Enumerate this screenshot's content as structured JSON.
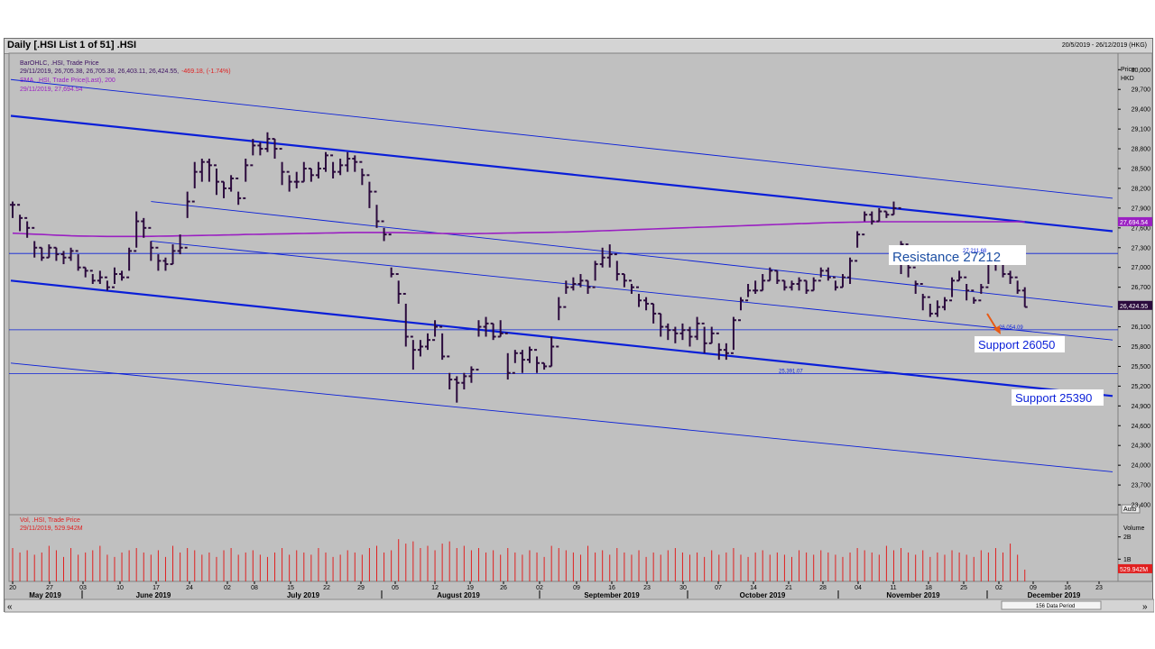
{
  "window": {
    "title": "Daily [.HSI List 1 of 51] .HSI",
    "date_range": "20/5/2019 - 26/12/2019 (HKG)",
    "data_period": "156 Data Period"
  },
  "legend": {
    "ohlc_label": "BarOHLC, .HSI, Trade Price",
    "ohlc_values": "29/11/2019, 26,705.38, 26,705.38, 26,403.11, 26,424.55,",
    "ohlc_change": "-469.18, (-1.74%)",
    "sma_label": "SMA, .HSI, Trade Price(Last),  200",
    "sma_value": "29/11/2019, 27,694.54",
    "vol_label": "Vol, .HSI, Trade Price",
    "vol_value": "29/11/2019, 529.942M"
  },
  "axis": {
    "price_title": "Price",
    "price_unit": "HKD",
    "auto": "Auto",
    "price_ticks": [
      "30,000",
      "29,700",
      "29,400",
      "29,100",
      "28,800",
      "28,500",
      "28,200",
      "27,900",
      "27,600",
      "27,300",
      "27,000",
      "26,700",
      "26,400",
      "26,100",
      "25,800",
      "25,500",
      "25,200",
      "24,900",
      "24,600",
      "24,300",
      "24,000",
      "23,700",
      "23,400"
    ],
    "vol_ticks": [
      "2B",
      "1B"
    ],
    "vol_title": "Volume",
    "day_ticks": [
      "20",
      "27",
      "03",
      "10",
      "17",
      "24",
      "02",
      "08",
      "15",
      "22",
      "29",
      "05",
      "12",
      "19",
      "26",
      "02",
      "09",
      "16",
      "23",
      "30",
      "07",
      "14",
      "21",
      "28",
      "04",
      "11",
      "18",
      "25",
      "02",
      "09",
      "16",
      "23"
    ],
    "months": [
      "May 2019",
      "June 2019",
      "July 2019",
      "August 2019",
      "September 2019",
      "October 2019",
      "November 2019",
      "December 2019"
    ]
  },
  "annotations": {
    "resistance": "Resistance 27212",
    "support1": "Support 26050",
    "support2": "Support 25390",
    "price_flag_last": "26,424.55",
    "price_flag_sma": "27,694.54",
    "vol_flag": "529.942M",
    "level_26054": "26,054.09",
    "level_25391": "25,391.07",
    "level_27212": "27,211.68"
  },
  "colors": {
    "bars": "#2b0a3d",
    "sma": "#9a1fc2",
    "trend": "#0a1fd8",
    "volume": "#e02020",
    "arrow": "#e85a14"
  },
  "chart_data": {
    "type": "bar",
    "title": "Daily [.HSI List 1 of 51] .HSI",
    "xlabel": "",
    "ylabel": "Price HKD",
    "ylim": [
      23250,
      30250
    ],
    "x_range": [
      "2019-05-20",
      "2019-12-26"
    ],
    "grid": false,
    "legend": "top-left",
    "series": [
      {
        "name": "BarOHLC, .HSI, Trade Price",
        "type": "ohlc",
        "close": [
          27950,
          27750,
          27600,
          27300,
          27150,
          27300,
          27200,
          27150,
          27250,
          27000,
          26950,
          26800,
          26850,
          26700,
          26900,
          26850,
          27250,
          27700,
          27600,
          27300,
          27100,
          27050,
          27250,
          27300,
          28000,
          28450,
          28600,
          28550,
          28300,
          28200,
          28350,
          28050,
          28550,
          28850,
          28800,
          28950,
          28800,
          28450,
          28300,
          28300,
          28500,
          28400,
          28500,
          28700,
          28450,
          28550,
          28650,
          28600,
          28400,
          28150,
          27700,
          27500,
          26900,
          26600,
          25950,
          25750,
          25800,
          25900,
          26100,
          25650,
          25300,
          25250,
          25350,
          25450,
          26100,
          26150,
          25950,
          26000,
          25400,
          25700,
          25600,
          25750,
          25550,
          25500,
          25800,
          26400,
          26700,
          26750,
          26800,
          26700,
          27050,
          27150,
          27200,
          26900,
          26800,
          26700,
          26500,
          26450,
          26300,
          26100,
          26050,
          26000,
          26050,
          25950,
          26150,
          25850,
          26000,
          25750,
          25700,
          26200,
          26500,
          26650,
          26650,
          26800,
          26950,
          26800,
          26700,
          26750,
          26800,
          26650,
          26800,
          26950,
          26850,
          26700,
          26850,
          27100,
          27500,
          27800,
          27700,
          27850,
          27800,
          27900,
          27350,
          27000,
          26750,
          26550,
          26300,
          26400,
          26500,
          26800,
          26850,
          26650,
          26500,
          26700,
          27050,
          27100,
          26900,
          26850,
          26650,
          26400
        ],
        "high": [
          28000,
          27800,
          27700,
          27400,
          27300,
          27350,
          27300,
          27250,
          27300,
          27200,
          27000,
          26900,
          26950,
          26800,
          27000,
          26950,
          27300,
          27850,
          27750,
          27400,
          27200,
          27150,
          27350,
          27500,
          28150,
          28600,
          28650,
          28650,
          28500,
          28300,
          28400,
          28150,
          28650,
          28950,
          28900,
          29050,
          28950,
          28600,
          28400,
          28450,
          28600,
          28500,
          28600,
          28750,
          28600,
          28650,
          28750,
          28700,
          28500,
          28300,
          27950,
          27600,
          27000,
          26800,
          26450,
          25900,
          25900,
          26000,
          26200,
          26000,
          25400,
          25350,
          25400,
          25500,
          26200,
          26250,
          26150,
          26200,
          25700,
          25750,
          25750,
          25800,
          25650,
          25550,
          25950,
          26550,
          26800,
          26850,
          26900,
          26800,
          27100,
          27300,
          27350,
          27100,
          26900,
          26750,
          26600,
          26550,
          26450,
          26300,
          26150,
          26100,
          26150,
          26100,
          26250,
          26100,
          26100,
          25850,
          25850,
          26250,
          26550,
          26750,
          26800,
          26900,
          27000,
          26950,
          26800,
          26800,
          26850,
          26800,
          26850,
          27000,
          27000,
          26800,
          26900,
          27150,
          27550,
          27850,
          27850,
          27900,
          27850,
          28000,
          27400,
          27200,
          26800,
          26600,
          26450,
          26500,
          26550,
          26850,
          26950,
          26750,
          26550,
          26750,
          27100,
          27250,
          27050,
          26950,
          26800,
          26700
        ],
        "low": [
          27750,
          27550,
          27450,
          27150,
          27100,
          27150,
          27100,
          27050,
          27100,
          26950,
          26850,
          26750,
          26750,
          26650,
          26750,
          26800,
          26950,
          27300,
          27450,
          27100,
          26950,
          26950,
          27050,
          27200,
          27750,
          28200,
          28300,
          28300,
          28100,
          28050,
          28150,
          27950,
          28300,
          28700,
          28700,
          28750,
          28650,
          28250,
          28150,
          28200,
          28300,
          28300,
          28350,
          28450,
          28350,
          28400,
          28450,
          28450,
          28250,
          27900,
          27600,
          27400,
          26850,
          26450,
          25800,
          25450,
          25650,
          25750,
          25950,
          25600,
          25150,
          24950,
          25150,
          25250,
          25950,
          25950,
          25900,
          25950,
          25300,
          25550,
          25400,
          25550,
          25400,
          25450,
          25500,
          26200,
          26600,
          26650,
          26700,
          26600,
          26800,
          27000,
          27000,
          26800,
          26700,
          26600,
          26400,
          26350,
          26150,
          25950,
          25900,
          25850,
          25900,
          25800,
          25900,
          25700,
          25850,
          25600,
          25600,
          25750,
          26350,
          26550,
          26600,
          26650,
          26800,
          26750,
          26650,
          26650,
          26650,
          26600,
          26650,
          26850,
          26800,
          26650,
          26700,
          26750,
          27300,
          27700,
          27650,
          27700,
          27750,
          27800,
          26900,
          26850,
          26600,
          26350,
          26250,
          26250,
          26350,
          26550,
          26800,
          26500,
          26450,
          26600,
          26750,
          26950,
          26850,
          26750,
          26600,
          26400
        ]
      },
      {
        "name": "SMA, .HSI, Trade Price(Last),  200",
        "type": "line",
        "values": [
          27520,
          27515,
          27510,
          27505,
          27500,
          27495,
          27490,
          27485,
          27480,
          27478,
          27476,
          27474,
          27472,
          27470,
          27470,
          27470,
          27470,
          27470,
          27470,
          27472,
          27474,
          27476,
          27478,
          27480,
          27482,
          27484,
          27486,
          27488,
          27490,
          27492,
          27494,
          27496,
          27500,
          27502,
          27504,
          27506,
          27508,
          27510,
          27512,
          27514,
          27516,
          27518,
          27520,
          27522,
          27524,
          27526,
          27528,
          27530,
          27530,
          27530,
          27530,
          27530,
          27530,
          27528,
          27526,
          27524,
          27522,
          27520,
          27518,
          27516,
          27514,
          27512,
          27512,
          27512,
          27514,
          27516,
          27518,
          27520,
          27522,
          27524,
          27526,
          27528,
          27530,
          27532,
          27534,
          27536,
          27538,
          27540,
          27544,
          27548,
          27552,
          27556,
          27560,
          27564,
          27568,
          27572,
          27576,
          27580,
          27584,
          27588,
          27592,
          27596,
          27600,
          27604,
          27608,
          27612,
          27616,
          27620,
          27624,
          27628,
          27632,
          27636,
          27640,
          27644,
          27648,
          27652,
          27656,
          27660,
          27664,
          27668,
          27672,
          27676,
          27680,
          27682,
          27684,
          27686,
          27688,
          27690,
          27692,
          27694,
          27694,
          27694,
          27694,
          27694,
          27694,
          27694,
          27694,
          27694,
          27694,
          27694,
          27694,
          27694,
          27694,
          27694,
          27694,
          27694,
          27694,
          27694,
          27694,
          27694
        ]
      },
      {
        "name": "Vol, .HSI, Trade Price",
        "type": "bar",
        "values": [
          1.5,
          1.3,
          1.4,
          1.2,
          1.3,
          1.6,
          1.4,
          1.1,
          1.5,
          1.2,
          1.3,
          1.4,
          1.6,
          1.2,
          1.1,
          1.3,
          1.4,
          1.5,
          1.3,
          1.2,
          1.4,
          1.1,
          1.6,
          1.3,
          1.5,
          1.4,
          1.2,
          1.3,
          1.1,
          1.4,
          1.5,
          1.2,
          1.3,
          1.4,
          1.2,
          1.1,
          1.3,
          1.5,
          1.2,
          1.4,
          1.3,
          1.2,
          1.5,
          1.3,
          1.1,
          1.2,
          1.4,
          1.3,
          1.2,
          1.5,
          1.6,
          1.3,
          1.4,
          1.9,
          1.7,
          1.8,
          1.5,
          1.6,
          1.4,
          1.7,
          1.8,
          1.5,
          1.6,
          1.4,
          1.5,
          1.3,
          1.4,
          1.2,
          1.5,
          1.3,
          1.2,
          1.4,
          1.3,
          1.1,
          1.6,
          1.5,
          1.4,
          1.3,
          1.2,
          1.6,
          1.3,
          1.4,
          1.2,
          1.5,
          1.3,
          1.2,
          1.4,
          1.1,
          1.3,
          1.2,
          1.4,
          1.5,
          1.3,
          1.2,
          1.3,
          1.1,
          1.4,
          1.2,
          1.3,
          1.5,
          1.2,
          1.1,
          1.3,
          1.4,
          1.2,
          1.3,
          1.2,
          1.1,
          1.4,
          1.3,
          1.2,
          1.4,
          1.3,
          1.2,
          1.1,
          1.3,
          1.5,
          1.4,
          1.3,
          1.2,
          1.6,
          1.4,
          1.5,
          1.3,
          1.2,
          1.4,
          1.1,
          1.3,
          1.2,
          1.4,
          1.3,
          1.2,
          1.1,
          1.4,
          1.3,
          1.5,
          1.3,
          1.7,
          1.2,
          0.53
        ]
      }
    ],
    "trendlines": [
      {
        "type": "upper_channel_outer",
        "from": [
          "2019-05-20",
          29850
        ],
        "to": [
          "2019-12-26",
          28050
        ]
      },
      {
        "type": "upper_channel",
        "from": [
          "2019-05-20",
          29300
        ],
        "to": [
          "2019-12-26",
          27550
        ]
      },
      {
        "type": "mid_channel_1",
        "from": [
          "2019-06-17",
          28000
        ],
        "to": [
          "2019-12-26",
          26400
        ]
      },
      {
        "type": "mid_channel_2",
        "from": [
          "2019-06-17",
          27400
        ],
        "to": [
          "2019-12-26",
          25900
        ]
      },
      {
        "type": "lower_channel",
        "from": [
          "2019-05-20",
          26800
        ],
        "to": [
          "2019-12-26",
          25050
        ]
      },
      {
        "type": "lower_channel_outer",
        "from": [
          "2019-05-20",
          25550
        ],
        "to": [
          "2019-12-26",
          23900
        ]
      }
    ],
    "horizontal_levels": [
      27212,
      26054,
      25391
    ],
    "last_close": 26424.55,
    "last_sma": 27694.54
  }
}
